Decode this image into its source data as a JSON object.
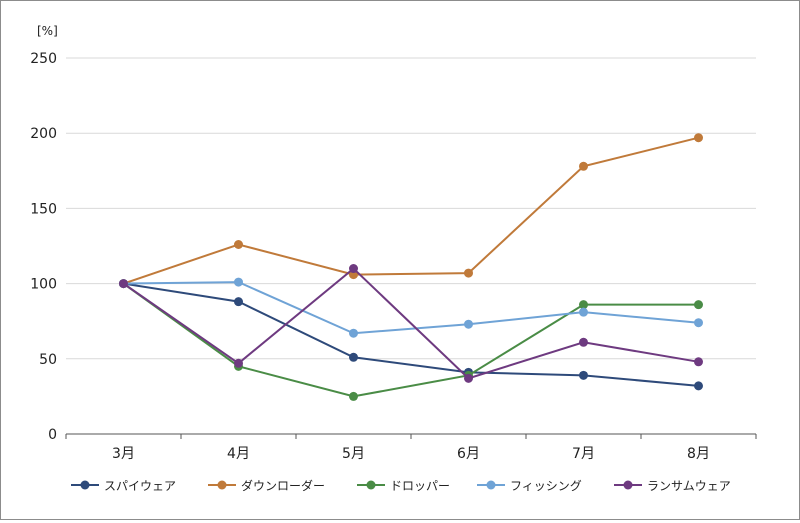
{
  "chart_data": {
    "type": "line",
    "unit_label": "[%]",
    "categories": [
      "3月",
      "4月",
      "5月",
      "6月",
      "7月",
      "8月"
    ],
    "ylim": [
      0,
      250
    ],
    "yticks": [
      0,
      50,
      100,
      150,
      200,
      250
    ],
    "grid": true,
    "legend_position": "bottom",
    "series": [
      {
        "name": "スパイウェア",
        "color": "#2e4a7a",
        "values": [
          100,
          88,
          51,
          41,
          39,
          32
        ]
      },
      {
        "name": "ダウンローダー",
        "color": "#c07a3a",
        "values": [
          100,
          126,
          106,
          107,
          178,
          197
        ]
      },
      {
        "name": "ドロッパー",
        "color": "#4a8c46",
        "values": [
          100,
          45,
          25,
          39,
          86,
          86
        ]
      },
      {
        "name": "フィッシング",
        "color": "#6fa3d6",
        "values": [
          100,
          101,
          67,
          73,
          81,
          74
        ]
      },
      {
        "name": "ランサムウェア",
        "color": "#6e3a80",
        "values": [
          100,
          47,
          110,
          37,
          61,
          48
        ]
      }
    ]
  }
}
